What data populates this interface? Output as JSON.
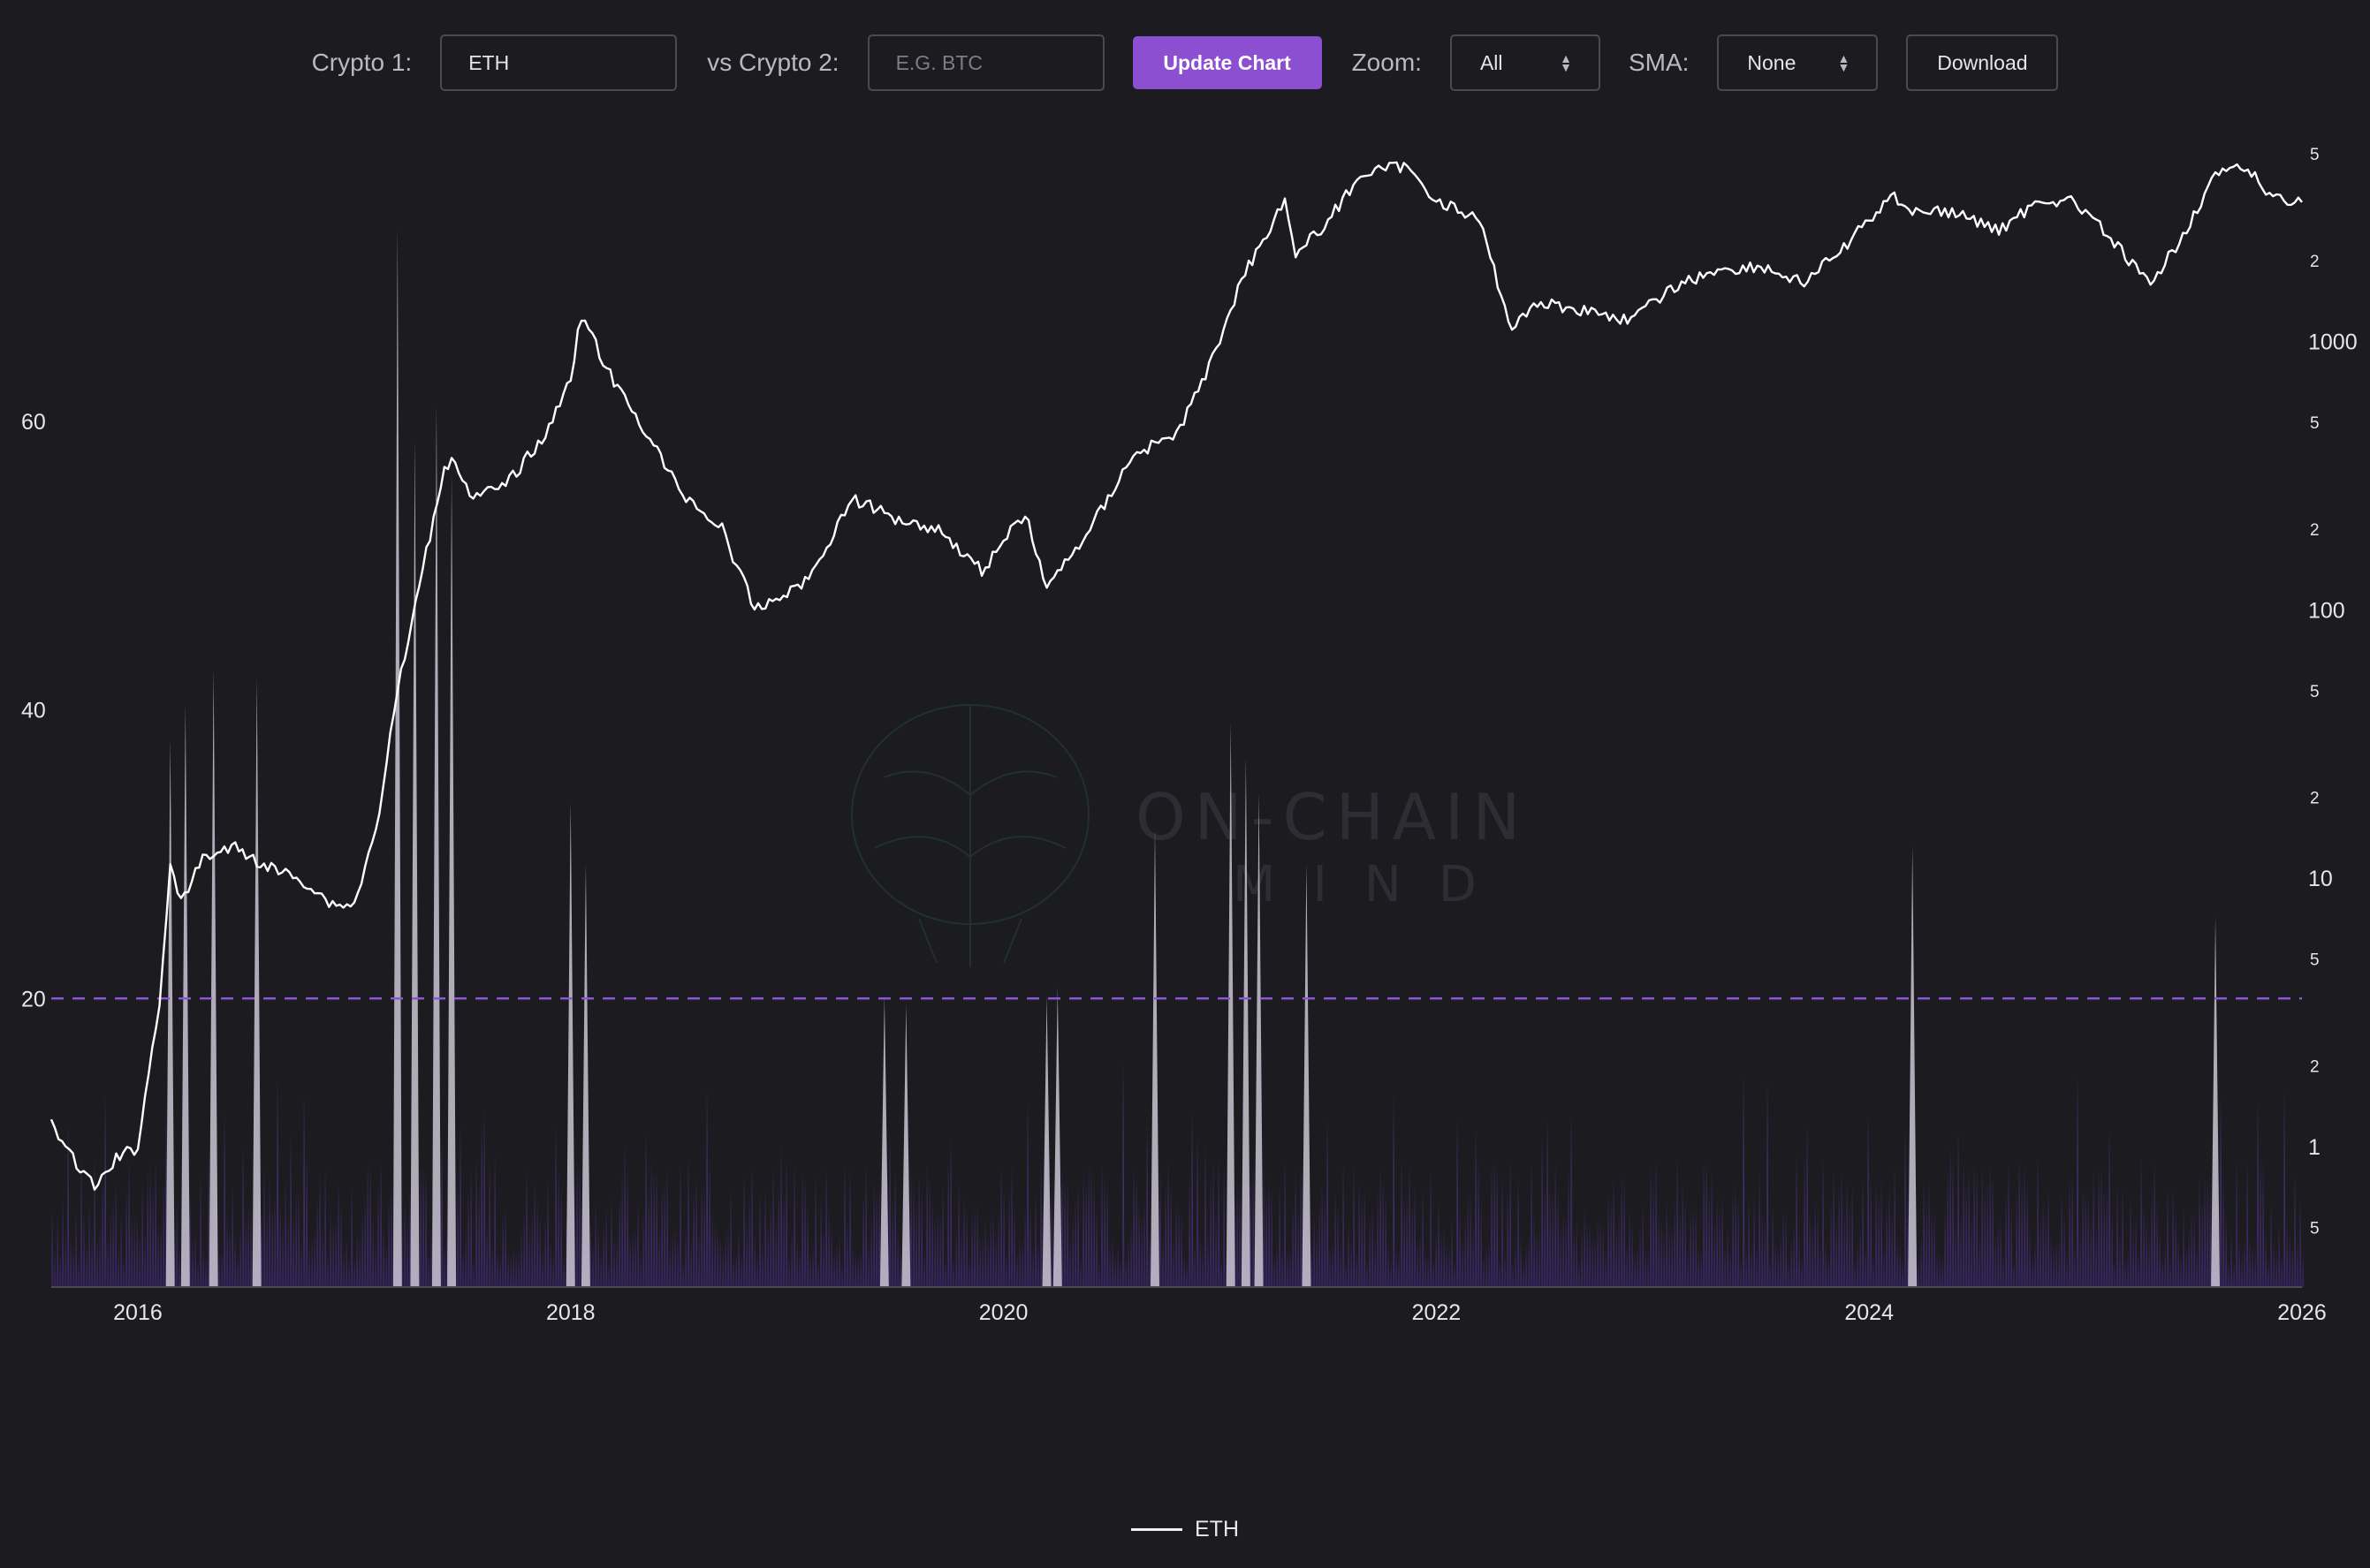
{
  "toolbar": {
    "crypto1_label": "Crypto 1:",
    "crypto1_value": "ETH",
    "crypto2_label": "vs Crypto 2:",
    "crypto2_placeholder": "E.G. BTC",
    "update_label": "Update Chart",
    "zoom_label": "Zoom:",
    "zoom_value": "All",
    "sma_label": "SMA:",
    "sma_value": "None",
    "download_label": "Download"
  },
  "watermark": {
    "line1": "ON-CHAIN",
    "line2": "MIND"
  },
  "colors": {
    "background": "#1b1b20",
    "price_line": "#ffffff",
    "volume_purple": "#7a4bc4",
    "volume_highlight": "#c9c5d3",
    "threshold_line": "#8a55d6",
    "accent_button": "#8c4fd1"
  },
  "legend": {
    "series_label": "ETH"
  },
  "chart_data": {
    "type": "line",
    "series": [
      {
        "name": "ETH",
        "x": [
          2015.6,
          2015.7,
          2015.8,
          2015.9,
          2016.0,
          2016.1,
          2016.15,
          2016.2,
          2016.3,
          2016.45,
          2016.6,
          2016.75,
          2016.9,
          2017.0,
          2017.1,
          2017.2,
          2017.3,
          2017.4,
          2017.45,
          2017.55,
          2017.7,
          2017.9,
          2018.0,
          2018.05,
          2018.2,
          2018.35,
          2018.5,
          2018.7,
          2018.85,
          2018.95,
          2019.1,
          2019.3,
          2019.5,
          2019.7,
          2019.9,
          2020.1,
          2020.2,
          2020.4,
          2020.6,
          2020.8,
          2020.95,
          2021.1,
          2021.3,
          2021.35,
          2021.5,
          2021.65,
          2021.85,
          2022.0,
          2022.2,
          2022.35,
          2022.45,
          2022.7,
          2022.9,
          2023.1,
          2023.3,
          2023.5,
          2023.7,
          2023.9,
          2024.1,
          2024.2,
          2024.4,
          2024.6,
          2024.8,
          2024.95,
          2025.1,
          2025.3,
          2025.45,
          2025.6,
          2025.75,
          2025.85,
          2026.0
        ],
        "values": [
          1.2,
          0.9,
          0.7,
          0.9,
          1.0,
          3.5,
          11,
          8,
          12,
          13,
          11,
          10,
          8,
          8,
          15,
          50,
          120,
          300,
          380,
          260,
          290,
          470,
          750,
          1250,
          700,
          460,
          280,
          200,
          100,
          110,
          130,
          260,
          220,
          200,
          140,
          230,
          120,
          200,
          380,
          450,
          800,
          1700,
          3400,
          2100,
          2800,
          4200,
          4500,
          3400,
          2800,
          1100,
          1400,
          1300,
          1200,
          1600,
          1850,
          1900,
          1650,
          2300,
          3500,
          3100,
          3000,
          2600,
          3400,
          3300,
          2500,
          1600,
          2500,
          4200,
          4400,
          3500,
          3300
        ]
      }
    ],
    "volume_axis": {
      "ticks": [
        20,
        40,
        60
      ],
      "ylim": [
        0,
        80
      ],
      "threshold": 20
    },
    "price_axis": {
      "scale": "log",
      "ylim": [
        0.3,
        6000
      ],
      "major_ticks": [
        1,
        10,
        100,
        1000
      ],
      "minor_ticks": [
        0.5,
        2,
        5,
        20,
        50,
        200,
        500,
        2000,
        5000
      ],
      "minor_labels": [
        "5",
        "2",
        "5",
        "2",
        "5",
        "2",
        "5",
        "2",
        "5"
      ]
    },
    "x_ticks": [
      2016,
      2018,
      2020,
      2022,
      2024,
      2026
    ],
    "xlim": [
      2015.6,
      2026.0
    ],
    "legend_position": "bottom-center"
  }
}
